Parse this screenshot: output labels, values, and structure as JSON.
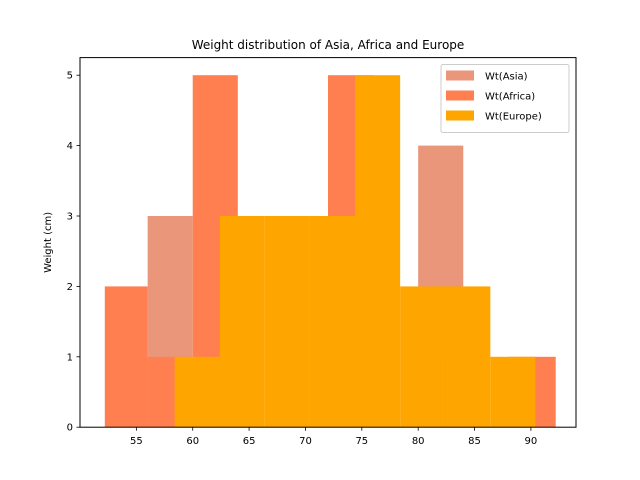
{
  "chart_data": {
    "type": "histogram",
    "title": "Weight distribution of Asia, Africa and Europe",
    "xlabel": "",
    "ylabel": "Weight (cm)",
    "xlim": [
      50.0,
      94.0
    ],
    "ylim": [
      0,
      5.25
    ],
    "xticks": [
      55,
      60,
      65,
      70,
      75,
      80,
      85,
      90
    ],
    "yticks": [
      0,
      1,
      2,
      3,
      4,
      5
    ],
    "legend_position": "top-right",
    "grid": false,
    "series": [
      {
        "name": "Wt(Asia)",
        "color": "#E9967A",
        "bins": [
          {
            "x0": 56.0,
            "x1": 60.0,
            "value": 3
          },
          {
            "x0": 80.0,
            "x1": 84.0,
            "value": 4
          }
        ]
      },
      {
        "name": "Wt(Africa)",
        "color": "#FF7F50",
        "bins": [
          {
            "x0": 52.2,
            "x1": 56.0,
            "value": 2
          },
          {
            "x0": 56.0,
            "x1": 60.0,
            "value": 1
          },
          {
            "x0": 60.0,
            "x1": 64.0,
            "value": 5
          },
          {
            "x0": 64.0,
            "x1": 68.0,
            "value": 0
          },
          {
            "x0": 68.0,
            "x1": 72.0,
            "value": 0
          },
          {
            "x0": 72.0,
            "x1": 76.0,
            "value": 5
          },
          {
            "x0": 76.0,
            "x1": 80.0,
            "value": 0
          },
          {
            "x0": 80.0,
            "x1": 84.0,
            "value": 1
          },
          {
            "x0": 84.0,
            "x1": 88.0,
            "value": 0
          },
          {
            "x0": 88.0,
            "x1": 92.2,
            "value": 1
          }
        ]
      },
      {
        "name": "Wt(Europe)",
        "color": "#FFA500",
        "bins": [
          {
            "x0": 58.4,
            "x1": 62.4,
            "value": 1
          },
          {
            "x0": 62.4,
            "x1": 66.4,
            "value": 3
          },
          {
            "x0": 66.4,
            "x1": 70.4,
            "value": 3
          },
          {
            "x0": 70.4,
            "x1": 74.4,
            "value": 3
          },
          {
            "x0": 74.4,
            "x1": 78.4,
            "value": 5
          },
          {
            "x0": 78.4,
            "x1": 82.4,
            "value": 2
          },
          {
            "x0": 82.4,
            "x1": 86.4,
            "value": 2
          },
          {
            "x0": 86.4,
            "x1": 90.4,
            "value": 1
          }
        ]
      }
    ]
  }
}
